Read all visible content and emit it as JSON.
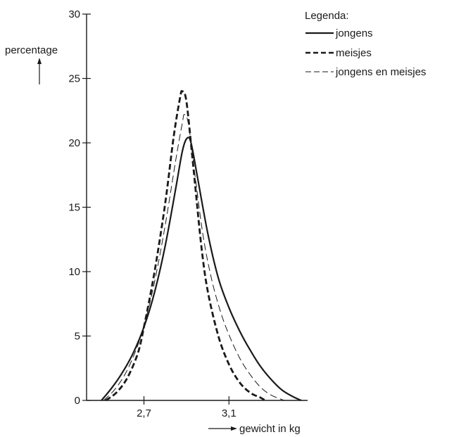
{
  "chart_data": {
    "type": "line",
    "title": "",
    "ylabel": "percentage",
    "xlabel": "gewicht in kg",
    "ylim": [
      0,
      30
    ],
    "xlim": [
      2.43,
      3.47
    ],
    "y_ticks": [
      0,
      5,
      10,
      15,
      20,
      25,
      30
    ],
    "x_ticks": [
      2.7,
      3.1
    ],
    "x_tick_labels": [
      "2,7",
      "3,1"
    ],
    "grid": false,
    "legend": {
      "title": "Legenda:",
      "placement": "top-right"
    },
    "series": [
      {
        "name": "jongens",
        "style": "solid-thick",
        "color": "#1a1a1a",
        "points": [
          [
            2.5,
            0
          ],
          [
            2.55,
            1.0
          ],
          [
            2.6,
            2.2
          ],
          [
            2.65,
            3.7
          ],
          [
            2.7,
            5.7
          ],
          [
            2.75,
            8.4
          ],
          [
            2.8,
            12.0
          ],
          [
            2.85,
            16.5
          ],
          [
            2.88,
            19.3
          ],
          [
            2.9,
            20.3
          ],
          [
            2.92,
            20.1
          ],
          [
            2.95,
            17.5
          ],
          [
            3.0,
            13.0
          ],
          [
            3.05,
            9.5
          ],
          [
            3.1,
            7.2
          ],
          [
            3.15,
            5.4
          ],
          [
            3.2,
            3.9
          ],
          [
            3.25,
            2.6
          ],
          [
            3.3,
            1.6
          ],
          [
            3.35,
            0.8
          ],
          [
            3.4,
            0.3
          ],
          [
            3.44,
            0
          ]
        ]
      },
      {
        "name": "meisjes",
        "style": "dashed-thick",
        "color": "#1a1a1a",
        "points": [
          [
            2.52,
            0
          ],
          [
            2.57,
            0.6
          ],
          [
            2.62,
            1.7
          ],
          [
            2.67,
            3.6
          ],
          [
            2.7,
            5.7
          ],
          [
            2.75,
            10.0
          ],
          [
            2.8,
            15.3
          ],
          [
            2.84,
            20.5
          ],
          [
            2.87,
            23.5
          ],
          [
            2.88,
            24.0
          ],
          [
            2.9,
            23.2
          ],
          [
            2.93,
            18.5
          ],
          [
            2.97,
            12.0
          ],
          [
            3.0,
            8.5
          ],
          [
            3.05,
            5.0
          ],
          [
            3.1,
            2.8
          ],
          [
            3.15,
            1.4
          ],
          [
            3.2,
            0.6
          ],
          [
            3.25,
            0.2
          ],
          [
            3.27,
            0
          ]
        ]
      },
      {
        "name": "jongens en meisjes",
        "style": "dashed-thin",
        "color": "#1a1a1a",
        "points": [
          [
            2.51,
            0
          ],
          [
            2.56,
            0.8
          ],
          [
            2.61,
            2.0
          ],
          [
            2.66,
            3.8
          ],
          [
            2.7,
            5.8
          ],
          [
            2.75,
            9.2
          ],
          [
            2.8,
            13.6
          ],
          [
            2.85,
            18.7
          ],
          [
            2.88,
            21.5
          ],
          [
            2.89,
            22.2
          ],
          [
            2.91,
            21.4
          ],
          [
            2.94,
            17.5
          ],
          [
            2.98,
            12.6
          ],
          [
            3.02,
            9.3
          ],
          [
            3.06,
            6.9
          ],
          [
            3.1,
            5.1
          ],
          [
            3.15,
            3.3
          ],
          [
            3.2,
            2.0
          ],
          [
            3.25,
            1.0
          ],
          [
            3.3,
            0.4
          ],
          [
            3.36,
            0
          ]
        ]
      }
    ]
  }
}
